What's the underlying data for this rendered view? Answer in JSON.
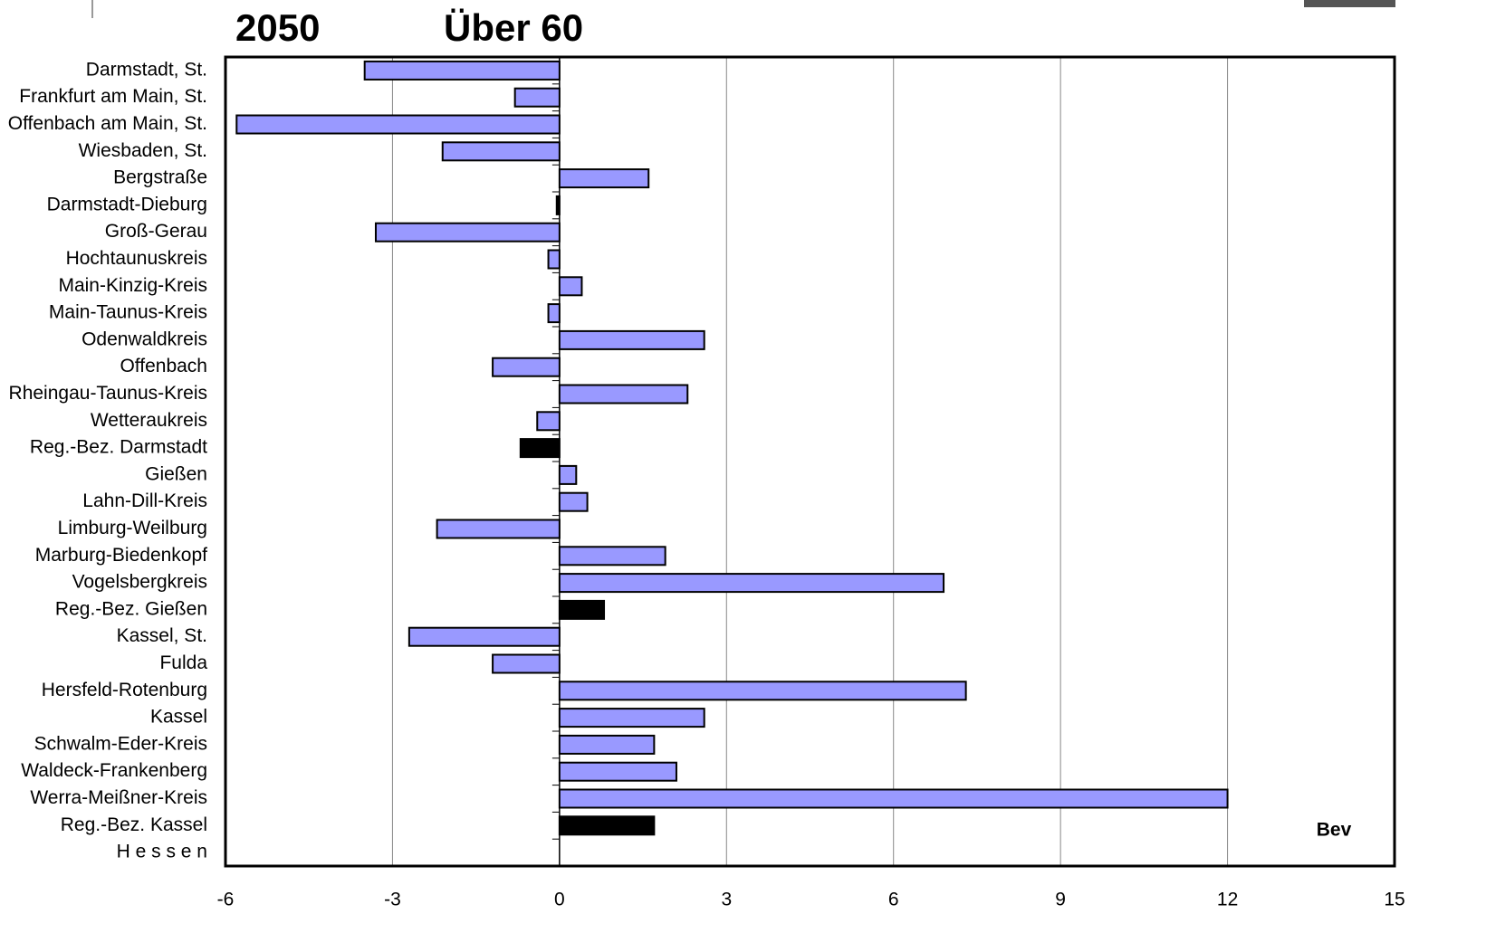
{
  "chart_data": {
    "type": "hbar",
    "title": "2050",
    "subtitle": "Über 60",
    "annotation": "Bev",
    "categories": [
      "Darmstadt, St.",
      "Frankfurt am Main, St.",
      "Offenbach am Main, St.",
      "Wiesbaden, St.",
      "Bergstraße",
      "Darmstadt-Dieburg",
      "Groß-Gerau",
      "Hochtaunuskreis",
      "Main-Kinzig-Kreis",
      "Main-Taunus-Kreis",
      "Odenwaldkreis",
      "Offenbach",
      "Rheingau-Taunus-Kreis",
      "Wetteraukreis",
      "Reg.-Bez. Darmstadt",
      "Gießen",
      "Lahn-Dill-Kreis",
      "Limburg-Weilburg",
      "Marburg-Biedenkopf",
      "Vogelsbergkreis",
      "Reg.-Bez. Gießen",
      "Kassel, St.",
      "Fulda",
      "Hersfeld-Rotenburg",
      "Kassel",
      "Schwalm-Eder-Kreis",
      "Waldeck-Frankenberg",
      "Werra-Meißner-Kreis",
      "Reg.-Bez. Kassel",
      "H e s s e n"
    ],
    "values": [
      -3.5,
      -0.8,
      -5.8,
      -2.1,
      1.6,
      -0.05,
      -3.3,
      -0.2,
      0.4,
      -0.2,
      2.6,
      -1.2,
      2.3,
      -0.4,
      -0.7,
      0.3,
      0.5,
      -2.2,
      1.9,
      6.9,
      0.8,
      -2.7,
      -1.2,
      7.3,
      2.6,
      1.7,
      2.1,
      12.0,
      1.7,
      null
    ],
    "colors": [
      "#9999ff",
      "#9999ff",
      "#9999ff",
      "#9999ff",
      "#9999ff",
      "#000000",
      "#9999ff",
      "#9999ff",
      "#9999ff",
      "#9999ff",
      "#9999ff",
      "#9999ff",
      "#9999ff",
      "#9999ff",
      "#000000",
      "#9999ff",
      "#9999ff",
      "#9999ff",
      "#9999ff",
      "#9999ff",
      "#000000",
      "#9999ff",
      "#9999ff",
      "#9999ff",
      "#9999ff",
      "#9999ff",
      "#9999ff",
      "#9999ff",
      "#000000",
      null
    ],
    "xlim": [
      -6,
      15
    ],
    "xticks": [
      -6,
      -3,
      0,
      3,
      6,
      9,
      12,
      15
    ],
    "grid": true
  }
}
